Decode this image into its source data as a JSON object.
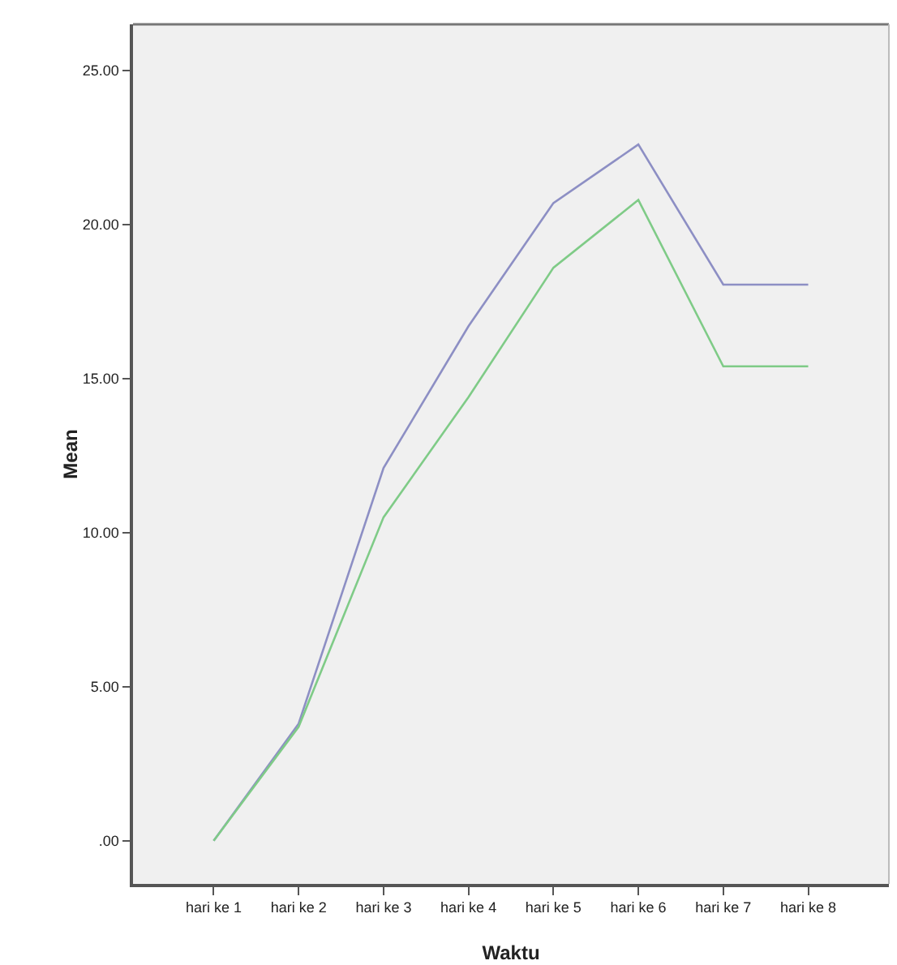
{
  "chart_data": {
    "type": "line",
    "xlabel": "Waktu",
    "ylabel": "Mean",
    "categories": [
      "hari ke 1",
      "hari ke 2",
      "hari ke 3",
      "hari ke 4",
      "hari ke 5",
      "hari ke 6",
      "hari ke 7",
      "hari ke 8"
    ],
    "series": [
      {
        "color": "#8d8fc4",
        "values": [
          0,
          3.8,
          12.1,
          16.7,
          20.7,
          22.6,
          18.05,
          18.05
        ]
      },
      {
        "color": "#7fcb87",
        "values": [
          0,
          3.7,
          10.5,
          14.4,
          18.6,
          20.8,
          15.4,
          15.4
        ]
      }
    ],
    "ylim": [
      -1.4,
      26.5
    ],
    "yticks": [
      {
        "value": 0,
        "label": ".00"
      },
      {
        "value": 5,
        "label": "5.00"
      },
      {
        "value": 10,
        "label": "10.00"
      },
      {
        "value": 15,
        "label": "15.00"
      },
      {
        "value": 20,
        "label": "20.00"
      },
      {
        "value": 25,
        "label": "25.00"
      }
    ],
    "grid": false,
    "marker": "none",
    "line_style": "solid"
  }
}
